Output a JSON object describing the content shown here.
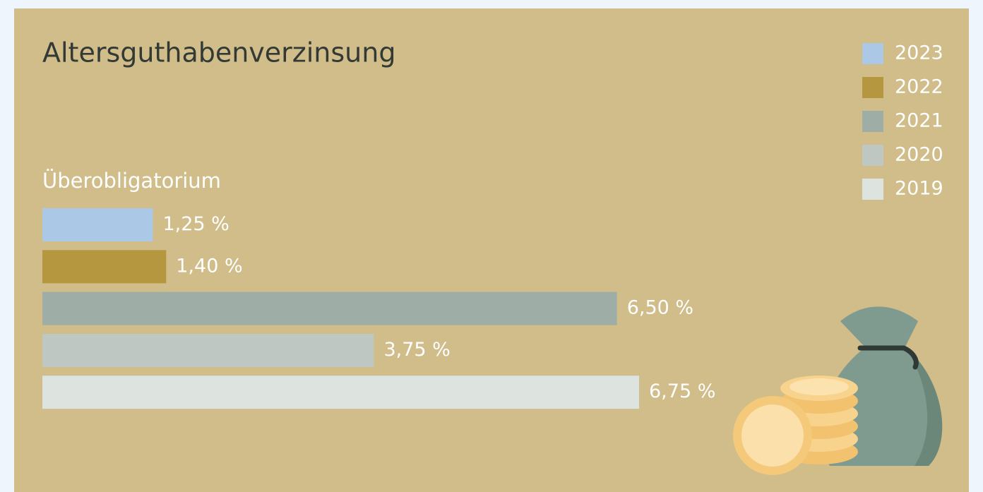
{
  "chart_data": {
    "type": "bar",
    "orientation": "horizontal",
    "title": "Altersguthabenverzinsung",
    "categories": [
      "Überobligatorium"
    ],
    "series": [
      {
        "name": "2023",
        "color": "#abc9e6",
        "values": [
          1.25
        ],
        "value_labels": [
          "1,25 %"
        ]
      },
      {
        "name": "2022",
        "color": "#b4973e",
        "values": [
          1.4
        ],
        "value_labels": [
          "1,40 %"
        ]
      },
      {
        "name": "2021",
        "color": "#9eada6",
        "values": [
          6.5
        ],
        "value_labels": [
          "6,50 %"
        ]
      },
      {
        "name": "2020",
        "color": "#bec7c1",
        "values": [
          3.75
        ],
        "value_labels": [
          "3,75 %"
        ]
      },
      {
        "name": "2019",
        "color": "#dde3de",
        "values": [
          6.75
        ],
        "value_labels": [
          "6,75 %"
        ]
      }
    ],
    "legend": "top-right"
  }
}
